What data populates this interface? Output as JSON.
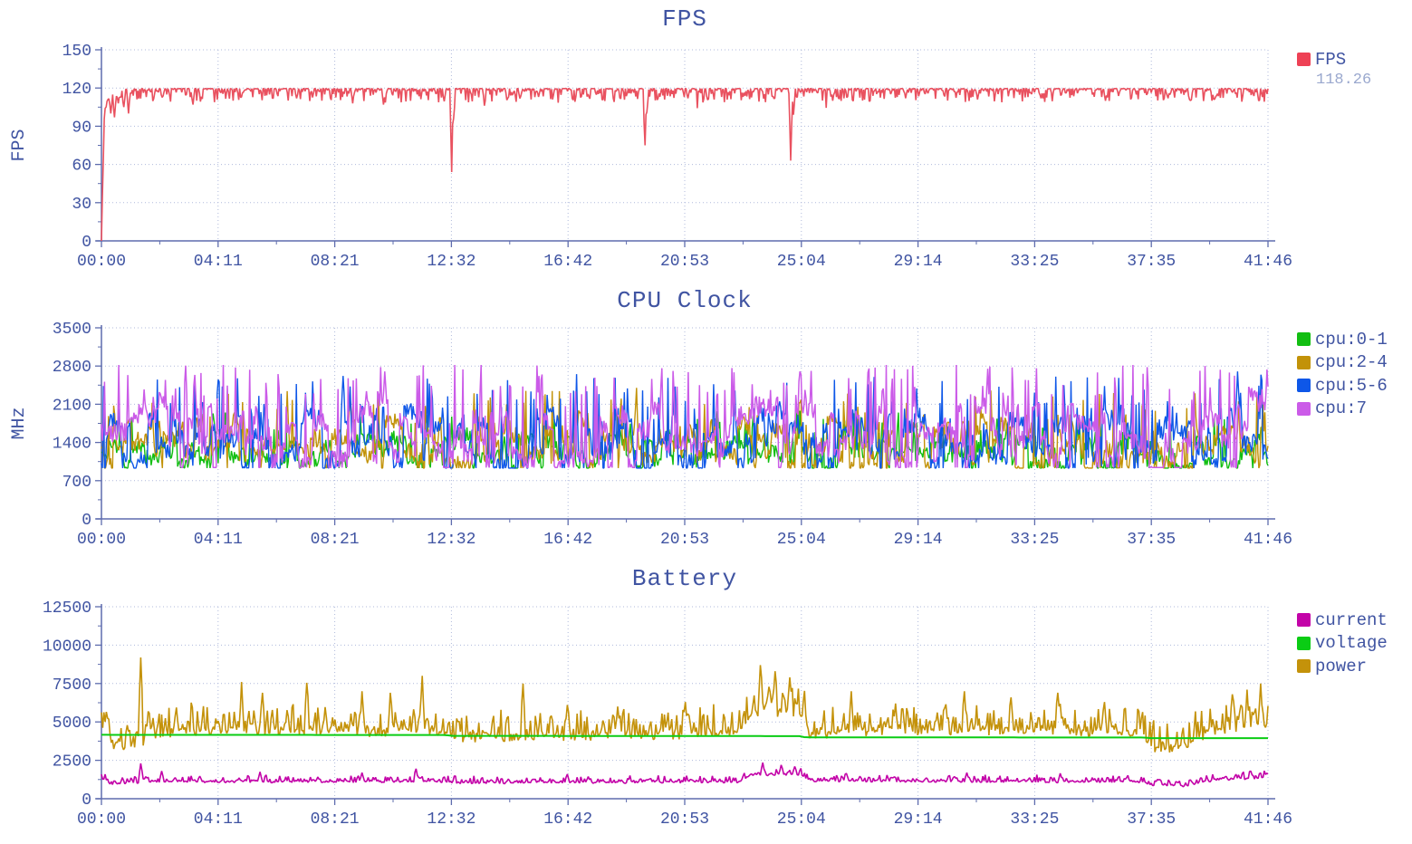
{
  "page": {
    "background": "#ffffff",
    "text_color": "#4054A2",
    "muted_color": "#9AA8CE",
    "axis_color": "#5E6CAE",
    "grid_color": "#AFB9DB"
  },
  "time_axis": {
    "xmax_seconds": 2506,
    "tick_labels": [
      "00:00",
      "04:11",
      "08:21",
      "12:32",
      "16:42",
      "20:53",
      "25:04",
      "29:14",
      "33:25",
      "37:35",
      "41:46"
    ]
  },
  "chart_data": [
    {
      "id": "fps",
      "type": "line",
      "title": "FPS",
      "ylabel": "FPS",
      "ylim": [
        0,
        150
      ],
      "yticks": [
        0,
        30,
        60,
        90,
        120,
        150
      ],
      "legend": [
        {
          "label": "FPS",
          "color": "#EE4155",
          "value": "118.26"
        }
      ],
      "series": [
        {
          "name": "FPS",
          "color": "#E9515F",
          "width": 1.6,
          "seed": 11,
          "n": 1250,
          "mode": "dip",
          "amp": 11,
          "amp2": 8,
          "clamp": [
            0,
            120.4
          ],
          "anchors": [
            [
              0,
              0
            ],
            [
              4,
              70
            ],
            [
              8,
              105
            ],
            [
              18,
              114
            ],
            [
              40,
              118.5
            ],
            [
              70,
              119.6
            ],
            [
              2506,
              119.6
            ]
          ],
          "spikes": [
            [
              8,
              104
            ],
            [
              14,
              111
            ],
            [
              20,
              100
            ],
            [
              28,
              97
            ],
            [
              36,
              108
            ],
            [
              48,
              105
            ],
            [
              58,
              100
            ],
            [
              197,
              107
            ],
            [
              300,
              113
            ],
            [
              420,
              112
            ],
            [
              540,
              108
            ],
            [
              605,
              107
            ],
            [
              752,
              54
            ],
            [
              757,
              96
            ],
            [
              872,
              112
            ],
            [
              940,
              113
            ],
            [
              1047,
              113
            ],
            [
              1167,
              75
            ],
            [
              1172,
              101
            ],
            [
              1261,
              112
            ],
            [
              1378,
              113
            ],
            [
              1481,
              63
            ],
            [
              1486,
              99
            ],
            [
              1572,
              110
            ],
            [
              1728,
              112
            ],
            [
              1883,
              111
            ],
            [
              2019,
              112
            ],
            [
              2156,
              110
            ],
            [
              2292,
              112
            ],
            [
              2389,
              111
            ],
            [
              2486,
              110
            ]
          ]
        }
      ]
    },
    {
      "id": "cpu",
      "type": "line",
      "title": "CPU Clock",
      "ylabel": "MHz",
      "ylim": [
        0,
        3500
      ],
      "yticks": [
        0,
        700,
        1400,
        2100,
        2800,
        3500
      ],
      "legend": [
        {
          "label": "cpu:0-1",
          "color": "#12BE12"
        },
        {
          "label": "cpu:2-4",
          "color": "#C29208"
        },
        {
          "label": "cpu:5-6",
          "color": "#0E57E8"
        },
        {
          "label": "cpu:7",
          "color": "#CB5BE8"
        }
      ],
      "series": [
        {
          "name": "cpu:0-1",
          "color": "#12BE12",
          "width": 1.4,
          "seed": 21,
          "n": 1150,
          "mode": "cpu",
          "p": 0.22,
          "amp": 330,
          "jitter": 300,
          "pb": 0.05,
          "burst": 420,
          "clamp": [
            930,
            2000
          ],
          "anchors": [
            [
              0,
              1230
            ],
            [
              2240,
              1230
            ],
            [
              2260,
              1060
            ],
            [
              2330,
              1050
            ],
            [
              2360,
              1230
            ],
            [
              2506,
              1230
            ]
          ],
          "spikes": [
            [
              240,
              1930
            ],
            [
              700,
              1880
            ],
            [
              1400,
              1900
            ],
            [
              2100,
              1850
            ]
          ]
        },
        {
          "name": "cpu:2-4",
          "color": "#C29208",
          "width": 1.4,
          "seed": 22,
          "n": 1150,
          "mode": "cpu",
          "p": 0.2,
          "amp": 480,
          "jitter": 350,
          "pb": 0.05,
          "burst": 500,
          "clamp": [
            930,
            2460
          ],
          "anchors": [
            [
              0,
              1380
            ],
            [
              2240,
              1380
            ],
            [
              2260,
              1120
            ],
            [
              2330,
              1100
            ],
            [
              2360,
              1380
            ],
            [
              2506,
              1380
            ]
          ],
          "spikes": [
            [
              400,
              2340
            ],
            [
              800,
              2300
            ],
            [
              1150,
              2400
            ],
            [
              1910,
              2350
            ],
            [
              2350,
              2300
            ]
          ]
        },
        {
          "name": "cpu:5-6",
          "color": "#0E57E8",
          "width": 1.4,
          "seed": 23,
          "n": 1150,
          "mode": "cpu",
          "p": 0.2,
          "amp": 560,
          "jitter": 380,
          "pb": 0.06,
          "burst": 600,
          "clamp": [
            930,
            2720
          ],
          "anchors": [
            [
              0,
              1450
            ],
            [
              2240,
              1450
            ],
            [
              2260,
              1150
            ],
            [
              2330,
              1130
            ],
            [
              2360,
              1450
            ],
            [
              2506,
              1450
            ]
          ],
          "spikes": [
            [
              250,
              2550
            ],
            [
              520,
              2620
            ],
            [
              1020,
              2650
            ],
            [
              1660,
              2600
            ],
            [
              2440,
              2700
            ],
            [
              2490,
              2640
            ]
          ]
        },
        {
          "name": "cpu:7",
          "color": "#CB5BE8",
          "width": 1.5,
          "seed": 24,
          "n": 1150,
          "mode": "cpu",
          "p": 0.18,
          "amp": 700,
          "jitter": 400,
          "pb": 0.1,
          "burst": 600,
          "clamp": [
            940,
            2820
          ],
          "anchors": [
            [
              0,
              1550
            ],
            [
              2240,
              1550
            ],
            [
              2260,
              1180
            ],
            [
              2330,
              1160
            ],
            [
              2360,
              1550
            ],
            [
              2506,
              1560
            ]
          ],
          "spikes": [
            [
              609,
              2700
            ],
            [
              936,
              2810
            ],
            [
              1205,
              2760
            ],
            [
              1500,
              2700
            ],
            [
              1903,
              2750
            ],
            [
              2247,
              2780
            ]
          ]
        }
      ]
    },
    {
      "id": "battery",
      "type": "line",
      "title": "Battery",
      "ylabel": "",
      "ylim": [
        0,
        12500
      ],
      "yticks": [
        0,
        2500,
        5000,
        7500,
        10000,
        12500
      ],
      "legend": [
        {
          "label": "current",
          "color": "#C303A8"
        },
        {
          "label": "voltage",
          "color": "#0ACC14"
        },
        {
          "label": "power",
          "color": "#C4920A"
        }
      ],
      "series": [
        {
          "name": "current",
          "color": "#C303A8",
          "width": 1.6,
          "seed": 31,
          "n": 950,
          "mode": "skew",
          "dn": 130,
          "up": 420,
          "pow": 3,
          "z": 2,
          "clamp": [
            760,
            2450
          ],
          "anchors": [
            [
              0,
              1420
            ],
            [
              20,
              1020
            ],
            [
              60,
              1080
            ],
            [
              120,
              1150
            ],
            [
              740,
              1180
            ],
            [
              770,
              1080
            ],
            [
              1370,
              1150
            ],
            [
              1395,
              1600
            ],
            [
              1505,
              1650
            ],
            [
              1520,
              1220
            ],
            [
              2235,
              1150
            ],
            [
              2258,
              930
            ],
            [
              2330,
              900
            ],
            [
              2365,
              1180
            ],
            [
              2430,
              1350
            ],
            [
              2506,
              1420
            ]
          ],
          "spikes": [
            [
              84,
              2300
            ],
            [
              130,
              1800
            ],
            [
              340,
              1750
            ],
            [
              560,
              1700
            ],
            [
              677,
              1950
            ],
            [
              1000,
              1600
            ],
            [
              1420,
              2350
            ],
            [
              1460,
              2200
            ],
            [
              1490,
              2100
            ],
            [
              1600,
              1650
            ],
            [
              1860,
              1700
            ],
            [
              2060,
              1650
            ],
            [
              2470,
              1800
            ]
          ]
        },
        {
          "name": "voltage",
          "color": "#0ACC14",
          "width": 2,
          "seed": 32,
          "n": 240,
          "mode": "flat",
          "z": 3,
          "clamp": [
            0,
            12500
          ],
          "anchors": [
            [
              0,
              4160
            ],
            [
              740,
              4150
            ],
            [
              752,
              4095
            ],
            [
              1500,
              4075
            ],
            [
              1512,
              3995
            ],
            [
              2240,
              3985
            ],
            [
              2252,
              3945
            ],
            [
              2506,
              3945
            ]
          ],
          "spikes": []
        },
        {
          "name": "power",
          "color": "#C4920A",
          "width": 1.6,
          "seed": 33,
          "n": 950,
          "mode": "skew",
          "dn": 550,
          "up": 1700,
          "pow": 2.4,
          "z": 1,
          "clamp": [
            3000,
            9300
          ],
          "anchors": [
            [
              0,
              5100
            ],
            [
              15,
              4300
            ],
            [
              30,
              3450
            ],
            [
              80,
              3560
            ],
            [
              100,
              4350
            ],
            [
              180,
              4650
            ],
            [
              400,
              4600
            ],
            [
              740,
              4450
            ],
            [
              770,
              4150
            ],
            [
              1000,
              4300
            ],
            [
              1200,
              4350
            ],
            [
              1370,
              4600
            ],
            [
              1395,
              5700
            ],
            [
              1470,
              5900
            ],
            [
              1508,
              5700
            ],
            [
              1522,
              4350
            ],
            [
              1700,
              4650
            ],
            [
              2000,
              4650
            ],
            [
              2235,
              4550
            ],
            [
              2258,
              3500
            ],
            [
              2325,
              3420
            ],
            [
              2360,
              4300
            ],
            [
              2420,
              4800
            ],
            [
              2506,
              5000
            ]
          ],
          "spikes": [
            [
              84,
              9200
            ],
            [
              300,
              7600
            ],
            [
              345,
              6900
            ],
            [
              440,
              7550
            ],
            [
              560,
              7000
            ],
            [
              620,
              6900
            ],
            [
              690,
              8000
            ],
            [
              905,
              7500
            ],
            [
              1000,
              6100
            ],
            [
              1110,
              6000
            ],
            [
              1255,
              6300
            ],
            [
              1415,
              8700
            ],
            [
              1448,
              8300
            ],
            [
              1478,
              7900
            ],
            [
              1610,
              7000
            ],
            [
              1705,
              6200
            ],
            [
              1855,
              7000
            ],
            [
              1955,
              6600
            ],
            [
              2055,
              6900
            ],
            [
              2155,
              6300
            ],
            [
              2430,
              6800
            ],
            [
              2462,
              7100
            ],
            [
              2490,
              7500
            ]
          ]
        }
      ]
    }
  ]
}
